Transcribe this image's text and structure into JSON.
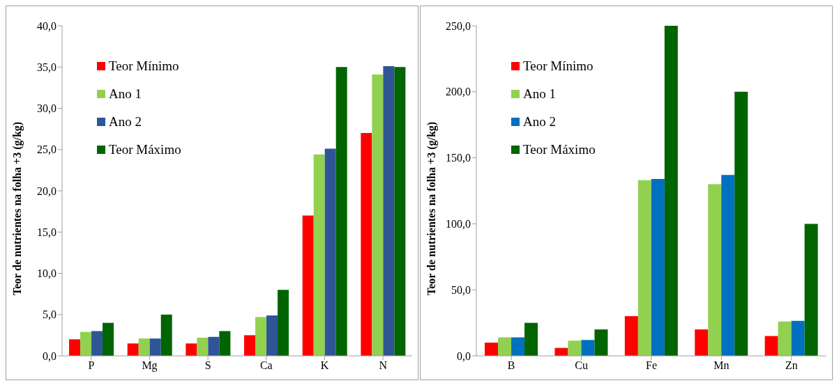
{
  "chart_data": [
    {
      "type": "bar",
      "ylabel": "Teor de nutrientes na folha +3 (g/kg)",
      "categories": [
        "P",
        "Mg",
        "S",
        "Ca",
        "K",
        "N"
      ],
      "series": [
        {
          "name": "Teor Mínimo",
          "color": "#ff0000",
          "values": [
            2,
            1.5,
            1.5,
            2.5,
            17,
            27
          ]
        },
        {
          "name": "Ano 1",
          "color": "#92d050",
          "values": [
            2.9,
            2.1,
            2.2,
            4.7,
            24.4,
            34.1
          ]
        },
        {
          "name": "Ano 2",
          "color": "#2f5597",
          "values": [
            3.0,
            2.1,
            2.3,
            4.9,
            25.1,
            35.1
          ]
        },
        {
          "name": "Teor Máximo",
          "color": "#006400",
          "values": [
            4,
            5,
            3,
            8,
            35,
            35
          ]
        }
      ],
      "ylim": [
        0,
        40
      ],
      "yticks": [
        {
          "value": 0,
          "label": "0,0"
        },
        {
          "value": 5,
          "label": "5,0"
        },
        {
          "value": 10,
          "label": "10,0"
        },
        {
          "value": 15,
          "label": "15,0"
        },
        {
          "value": 20,
          "label": "20,0"
        },
        {
          "value": 25,
          "label": "25,0"
        },
        {
          "value": 30,
          "label": "30,0"
        },
        {
          "value": 35,
          "label": "35,0"
        },
        {
          "value": 40,
          "label": "40,0"
        }
      ],
      "grid": false,
      "legend": "top left"
    },
    {
      "type": "bar",
      "ylabel": "Teor de nutrientes na folha +3 (g/kg)",
      "categories": [
        "B",
        "Cu",
        "Fe",
        "Mn",
        "Zn"
      ],
      "series": [
        {
          "name": "Teor Mínimo",
          "color": "#ff0000",
          "values": [
            10,
            6,
            30,
            20,
            15
          ]
        },
        {
          "name": "Ano 1",
          "color": "#92d050",
          "values": [
            14,
            11.5,
            133,
            130,
            26
          ]
        },
        {
          "name": "Ano 2",
          "color": "#0070c0",
          "values": [
            14,
            12,
            134,
            137,
            26.5
          ]
        },
        {
          "name": "Teor Máximo",
          "color": "#006400",
          "values": [
            25,
            20,
            250,
            200,
            100
          ]
        }
      ],
      "ylim": [
        0,
        250
      ],
      "yticks": [
        {
          "value": 0,
          "label": "0,0"
        },
        {
          "value": 50,
          "label": "50,0"
        },
        {
          "value": 100,
          "label": "100,0"
        },
        {
          "value": 150,
          "label": "150,0"
        },
        {
          "value": 200,
          "label": "200,0"
        },
        {
          "value": 250,
          "label": "250,0"
        }
      ],
      "grid": false,
      "legend": "top left"
    }
  ]
}
